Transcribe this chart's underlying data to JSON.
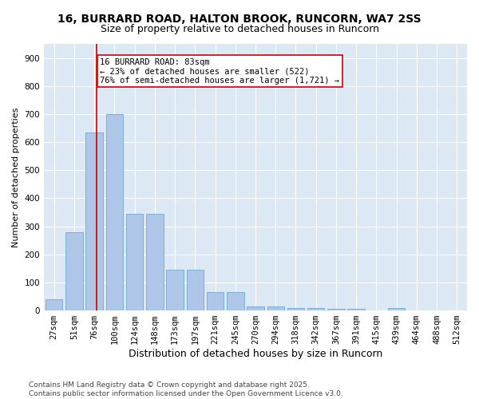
{
  "title": "16, BURRARD ROAD, HALTON BROOK, RUNCORN, WA7 2SS",
  "subtitle": "Size of property relative to detached houses in Runcorn",
  "xlabel": "Distribution of detached houses by size in Runcorn",
  "ylabel": "Number of detached properties",
  "categories": [
    "27sqm",
    "51sqm",
    "76sqm",
    "100sqm",
    "124sqm",
    "148sqm",
    "173sqm",
    "197sqm",
    "221sqm",
    "245sqm",
    "270sqm",
    "294sqm",
    "318sqm",
    "342sqm",
    "367sqm",
    "391sqm",
    "415sqm",
    "439sqm",
    "464sqm",
    "488sqm",
    "512sqm"
  ],
  "values": [
    40,
    280,
    635,
    700,
    345,
    345,
    145,
    145,
    65,
    65,
    15,
    15,
    10,
    10,
    5,
    5,
    0,
    8,
    0,
    0,
    0
  ],
  "bar_color": "#aec6e8",
  "bar_edge_color": "#7bafd4",
  "vline_x": 2.13,
  "vline_color": "#cc0000",
  "annotation_text": "16 BURRARD ROAD: 83sqm\n← 23% of detached houses are smaller (522)\n76% of semi-detached houses are larger (1,721) →",
  "annotation_box_color": "#ffffff",
  "annotation_box_edge": "#cc0000",
  "ylim": [
    0,
    950
  ],
  "yticks": [
    0,
    100,
    200,
    300,
    400,
    500,
    600,
    700,
    800,
    900
  ],
  "background_color": "#dce9f5",
  "footer_text": "Contains HM Land Registry data © Crown copyright and database right 2025.\nContains public sector information licensed under the Open Government Licence v3.0.",
  "title_fontsize": 10,
  "subtitle_fontsize": 9,
  "xlabel_fontsize": 9,
  "ylabel_fontsize": 8,
  "tick_fontsize": 7.5,
  "annotation_fontsize": 7.5,
  "footer_fontsize": 6.5,
  "figwidth": 6.0,
  "figheight": 5.0,
  "dpi": 100
}
